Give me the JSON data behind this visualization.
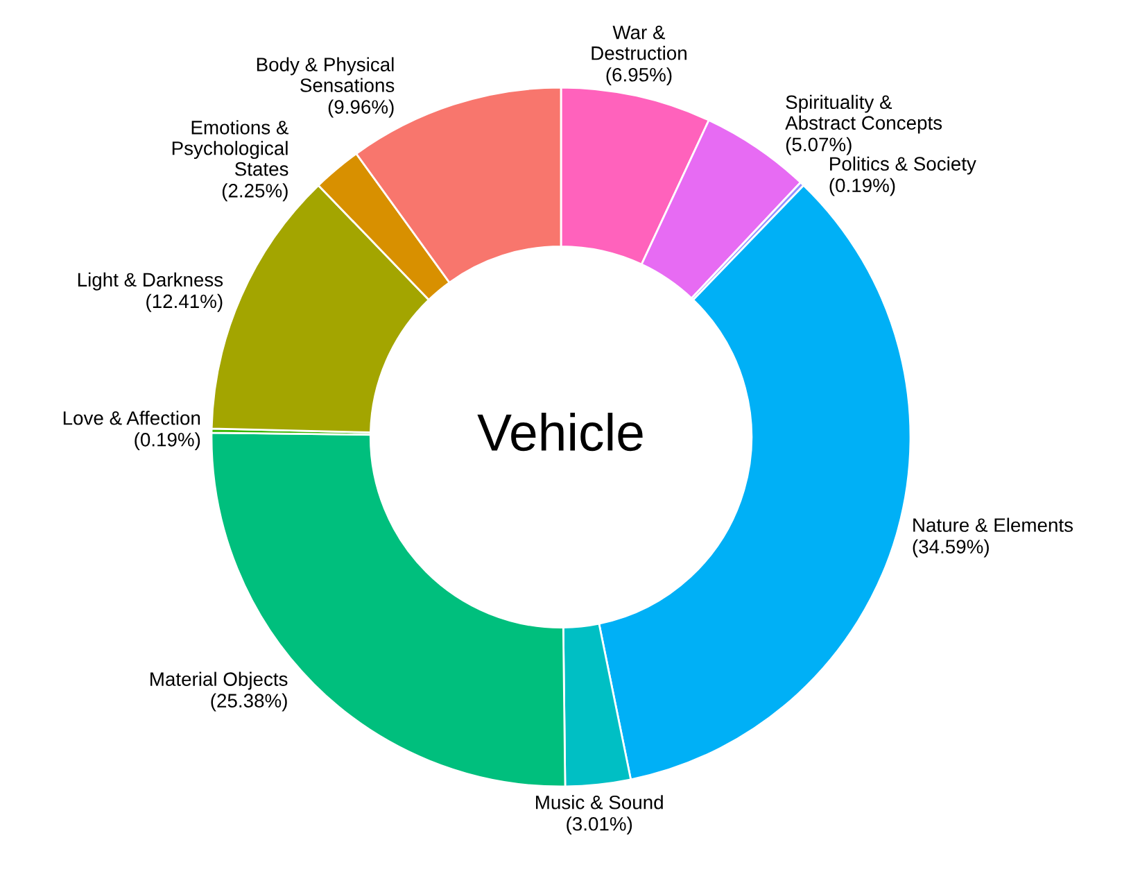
{
  "chart_data": {
    "type": "donut",
    "title": "Vehicle",
    "categories": [
      "War &\nDestruction",
      "Spirituality &\nAbstract Concepts",
      "Politics & Society",
      "Nature & Elements",
      "Music & Sound",
      "Material Objects",
      "Love & Affection",
      "Light & Darkness",
      "Emotions &\nPsychological\nStates",
      "Body & Physical\nSensations"
    ],
    "values": [
      6.95,
      5.07,
      0.19,
      34.59,
      3.01,
      25.38,
      0.19,
      12.41,
      2.25,
      9.96
    ],
    "colors": [
      "#ff62bc",
      "#e76bf3",
      "#9590ff",
      "#00b0f6",
      "#00bfc4",
      "#00bf7d",
      "#39b600",
      "#a3a500",
      "#d89000",
      "#f8766d"
    ],
    "value_labels": [
      "(6.95%)",
      "(5.07%)",
      "(0.19%)",
      "(34.59%)",
      "(3.01%)",
      "(25.38%)",
      "(0.19%)",
      "(12.41%)",
      "(2.25%)",
      "(9.96%)"
    ]
  }
}
